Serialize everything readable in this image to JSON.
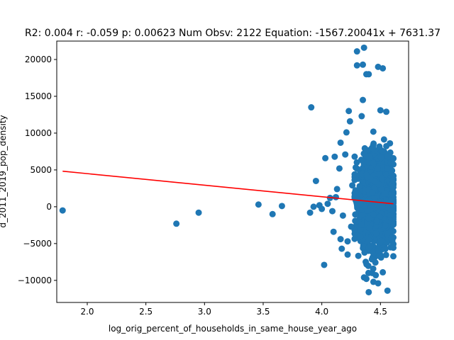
{
  "chart_data": {
    "type": "scatter",
    "title": "R2: 0.004 r: -0.059 p: 0.00623 Num Obsv: 2122 Equation: -1567.20041x + 7631.37",
    "xlabel": "log_orig_percent_of_households_in_same_house_year_ago",
    "ylabel": "d_2011_2019_pop_density",
    "xlim": [
      1.74,
      4.74
    ],
    "ylim": [
      -13000,
      22500
    ],
    "xticks": [
      2.0,
      2.5,
      3.0,
      3.5,
      4.0,
      4.5
    ],
    "xtick_labels": [
      "2.0",
      "2.5",
      "3.0",
      "3.5",
      "4.0",
      "4.5"
    ],
    "yticks": [
      -10000,
      -5000,
      0,
      5000,
      10000,
      15000,
      20000
    ],
    "ytick_labels": [
      "−10000",
      "−5000",
      "0",
      "5000",
      "10000",
      "15000",
      "20000"
    ],
    "grid": false,
    "point_color": "#1f77b4",
    "line_color": "#ff0000",
    "regression": {
      "slope": -1567.20041,
      "intercept": 7631.37,
      "x_range": [
        1.79,
        4.61
      ]
    },
    "outliers": [
      {
        "x": 1.79,
        "y": -500
      },
      {
        "x": 2.76,
        "y": -2300
      },
      {
        "x": 2.95,
        "y": -800
      },
      {
        "x": 3.46,
        "y": 300
      },
      {
        "x": 3.58,
        "y": -1000
      },
      {
        "x": 3.66,
        "y": 100
      },
      {
        "x": 3.91,
        "y": 13500
      },
      {
        "x": 3.9,
        "y": -800
      },
      {
        "x": 3.95,
        "y": 3500
      },
      {
        "x": 4.02,
        "y": -7900
      },
      {
        "x": 4.03,
        "y": 6600
      },
      {
        "x": 4.1,
        "y": -3400
      },
      {
        "x": 4.11,
        "y": 6800
      },
      {
        "x": 4.15,
        "y": 5200
      },
      {
        "x": 4.16,
        "y": 8700
      },
      {
        "x": 4.2,
        "y": 7100
      },
      {
        "x": 4.21,
        "y": 10100
      },
      {
        "x": 4.23,
        "y": 13000
      },
      {
        "x": 4.24,
        "y": 11600
      },
      {
        "x": 4.17,
        "y": -5700
      },
      {
        "x": 4.22,
        "y": -6500
      },
      {
        "x": 4.16,
        "y": -4400
      },
      {
        "x": 4.3,
        "y": 21100
      },
      {
        "x": 4.3,
        "y": 19200
      },
      {
        "x": 4.36,
        "y": 21600
      },
      {
        "x": 4.35,
        "y": 19300
      },
      {
        "x": 4.4,
        "y": 18000
      },
      {
        "x": 4.38,
        "y": 18000
      },
      {
        "x": 4.35,
        "y": 14500
      },
      {
        "x": 4.34,
        "y": 12300
      },
      {
        "x": 4.48,
        "y": 19000
      },
      {
        "x": 4.52,
        "y": 18800
      },
      {
        "x": 4.5,
        "y": 13100
      },
      {
        "x": 4.55,
        "y": 12900
      },
      {
        "x": 4.36,
        "y": -9600
      },
      {
        "x": 4.38,
        "y": -9800
      },
      {
        "x": 4.4,
        "y": -11600
      },
      {
        "x": 4.56,
        "y": -11400
      },
      {
        "x": 4.52,
        "y": -8900
      },
      {
        "x": 4.48,
        "y": -10400
      },
      {
        "x": 4.44,
        "y": -10200
      },
      {
        "x": 4.46,
        "y": -9300
      },
      {
        "x": 3.93,
        "y": 0
      },
      {
        "x": 3.98,
        "y": 200
      },
      {
        "x": 4.0,
        "y": -300
      },
      {
        "x": 4.05,
        "y": 400
      },
      {
        "x": 4.07,
        "y": 1200
      },
      {
        "x": 4.12,
        "y": 1300
      },
      {
        "x": 4.13,
        "y": 2400
      },
      {
        "x": 4.18,
        "y": -1200
      },
      {
        "x": 4.09,
        "y": -600
      },
      {
        "x": 4.26,
        "y": 2900
      },
      {
        "x": 4.25,
        "y": -2700
      },
      {
        "x": 4.22,
        "y": -4700
      }
    ],
    "main_cluster": {
      "n": 2122,
      "x_center": 4.47,
      "x_spread": 0.07,
      "x_min": 4.28,
      "x_max": 4.61,
      "y_center": 700,
      "y_spread": 2900,
      "y_min": -9000,
      "y_max": 11000
    }
  }
}
